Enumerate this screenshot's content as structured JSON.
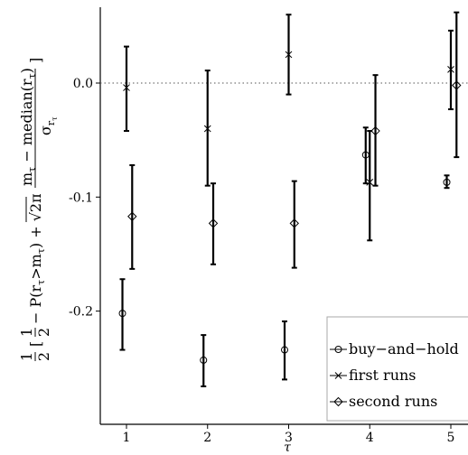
{
  "chart_data": {
    "type": "scatter",
    "title": "",
    "xlabel": "τ",
    "ylabel": {
      "part1": "1",
      "part2": "2",
      "part3": "[",
      "part4": "1",
      "part5": "2",
      "part6": "− P(r",
      "part7": "τ",
      "part8": ">m",
      "part9": "τ",
      "part10": ") + √2π",
      "part11": "m",
      "part12": "τ",
      "part13": " − median(r",
      "part14": "τ",
      "part15": ")",
      "part16": "σ",
      "part17": "r",
      "part18": "τ",
      "part19": "]"
    },
    "xlim": [
      0.8,
      5.2
    ],
    "ylim": [
      -0.3,
      0.065
    ],
    "x_ticks": [
      1,
      2,
      3,
      4,
      5
    ],
    "y_ticks": [
      0.0,
      -0.1,
      -0.2
    ],
    "y_tick_labels": [
      "0.0",
      "-0.1",
      "-0.2"
    ],
    "reference_line": {
      "y": 0.0,
      "style": "dotted"
    },
    "legend": {
      "position": "bottom-right"
    },
    "series": [
      {
        "name": "buy−and−hold",
        "marker": "circle",
        "points": [
          {
            "x": 0.95,
            "y": -0.202,
            "lo": -0.234,
            "hi": -0.172
          },
          {
            "x": 1.95,
            "y": -0.243,
            "lo": -0.266,
            "hi": -0.221
          },
          {
            "x": 2.95,
            "y": -0.234,
            "lo": -0.26,
            "hi": -0.209
          },
          {
            "x": 3.95,
            "y": -0.063,
            "lo": -0.088,
            "hi": -0.039
          },
          {
            "x": 4.95,
            "y": -0.087,
            "lo": -0.092,
            "hi": -0.081
          }
        ]
      },
      {
        "name": "first runs",
        "marker": "cross",
        "points": [
          {
            "x": 1.0,
            "y": -0.004,
            "lo": -0.042,
            "hi": 0.032
          },
          {
            "x": 2.0,
            "y": -0.04,
            "lo": -0.09,
            "hi": 0.011
          },
          {
            "x": 3.0,
            "y": 0.025,
            "lo": -0.01,
            "hi": 0.06
          },
          {
            "x": 4.0,
            "y": -0.087,
            "lo": -0.138,
            "hi": -0.042
          },
          {
            "x": 5.0,
            "y": 0.012,
            "lo": -0.023,
            "hi": 0.046
          }
        ]
      },
      {
        "name": "second runs",
        "marker": "diamond",
        "points": [
          {
            "x": 1.07,
            "y": -0.117,
            "lo": -0.163,
            "hi": -0.072
          },
          {
            "x": 2.07,
            "y": -0.123,
            "lo": -0.159,
            "hi": -0.088
          },
          {
            "x": 3.07,
            "y": -0.123,
            "lo": -0.162,
            "hi": -0.086
          },
          {
            "x": 4.07,
            "y": -0.042,
            "lo": -0.09,
            "hi": 0.007
          },
          {
            "x": 5.07,
            "y": -0.002,
            "lo": -0.065,
            "hi": 0.062
          }
        ]
      }
    ]
  }
}
